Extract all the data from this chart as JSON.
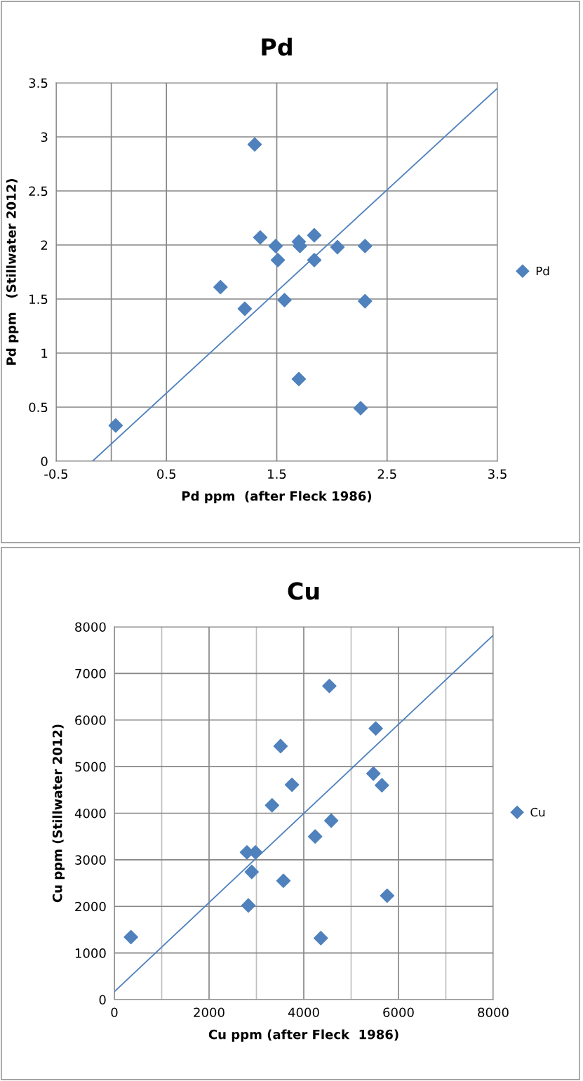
{
  "chart_data": [
    {
      "type": "scatter",
      "title": "Pd",
      "xlabel": "Pd ppm  (after Fleck 1986)",
      "ylabel": "Pd ppm   (Stillwater 2012)",
      "xlim": [
        -0.5,
        3.5
      ],
      "ylim": [
        0,
        3.5
      ],
      "xticks": [
        -0.5,
        0.5,
        1.5,
        2.5,
        3.5
      ],
      "yticks": [
        0,
        0.5,
        1,
        1.5,
        2,
        2.5,
        3,
        3.5
      ],
      "grid": true,
      "legend": "right",
      "marker": "diamond",
      "ref_lines": [
        {
          "axis": "x",
          "value": 0,
          "color": "#868686"
        }
      ],
      "series": [
        {
          "name": "Pd",
          "color": "#4f81bd",
          "x": [
            0.04,
            1.3,
            1.35,
            1.49,
            1.51,
            1.7,
            1.71,
            1.84,
            1.84,
            2.05,
            2.3,
            0.99,
            1.21,
            1.57,
            2.3,
            1.7,
            2.26
          ],
          "values": [
            0.33,
            2.93,
            2.07,
            1.99,
            1.86,
            2.03,
            1.99,
            2.09,
            1.86,
            1.98,
            1.99,
            1.61,
            1.41,
            1.49,
            1.48,
            0.76,
            0.49
          ]
        },
        {
          "type": "line",
          "color": "#4f81bd",
          "marker": "none",
          "x": [
            -0.17,
            3.5
          ],
          "values": [
            0,
            3.45
          ]
        }
      ]
    },
    {
      "type": "scatter",
      "title": "Cu",
      "xlabel": "Cu ppm (after Fleck  1986)",
      "ylabel": "Cu ppm (Stillwater 2012)",
      "xlim": [
        0,
        8000
      ],
      "ylim": [
        0,
        8000
      ],
      "xticks": [
        0,
        {
          "value": 1000,
          "label": null
        },
        2000,
        {
          "value": 3000,
          "label": null
        },
        4000,
        {
          "value": 5000,
          "label": null
        },
        6000,
        {
          "value": 7000,
          "label": null
        },
        8000
      ],
      "yticks": [
        0,
        1000,
        2000,
        3000,
        4000,
        5000,
        6000,
        7000,
        8000
      ],
      "grid": true,
      "legend": "right",
      "marker": "diamond",
      "series": [
        {
          "name": "Cu",
          "color": "#4f81bd",
          "x": [
            350,
            4540,
            5520,
            3510,
            5470,
            5650,
            3750,
            3330,
            4580,
            4240,
            2800,
            2980,
            2900,
            3570,
            2830,
            5760,
            4360
          ],
          "values": [
            1340,
            6730,
            5820,
            5440,
            4850,
            4600,
            4610,
            4170,
            3840,
            3500,
            3160,
            3160,
            2740,
            2550,
            2020,
            2230,
            1320
          ]
        },
        {
          "type": "line",
          "color": "#4f81bd",
          "marker": "none",
          "x": [
            0,
            8000
          ],
          "values": [
            170,
            7820
          ]
        }
      ]
    }
  ]
}
